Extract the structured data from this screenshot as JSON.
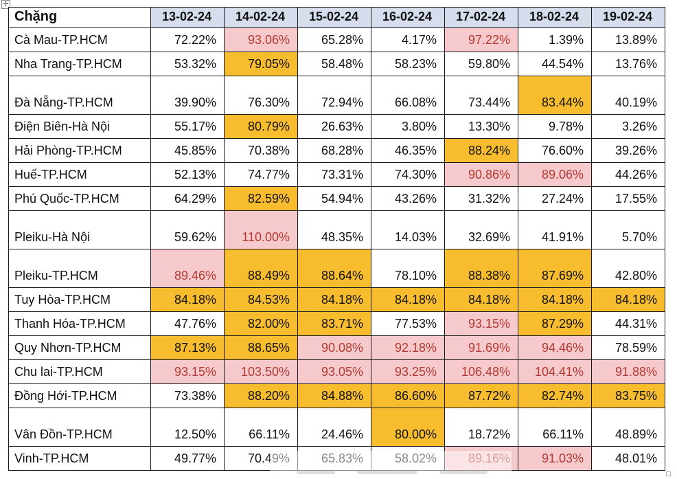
{
  "table": {
    "corner_label": "Chặng",
    "dates": [
      "13-02-24",
      "14-02-24",
      "15-02-24",
      "16-02-24",
      "17-02-24",
      "18-02-24",
      "19-02-24"
    ],
    "rows": [
      {
        "route": "Cà Mau-TP.HCM",
        "tall": false,
        "cells": [
          [
            "72.22%",
            "plain"
          ],
          [
            "93.06%",
            "pink"
          ],
          [
            "65.28%",
            "plain"
          ],
          [
            "4.17%",
            "plain"
          ],
          [
            "97.22%",
            "pink"
          ],
          [
            "1.39%",
            "plain"
          ],
          [
            "13.89%",
            "plain"
          ]
        ]
      },
      {
        "route": "Nha Trang-TP.HCM",
        "tall": false,
        "cells": [
          [
            "53.32%",
            "plain"
          ],
          [
            "79.05%",
            "gold"
          ],
          [
            "58.48%",
            "plain"
          ],
          [
            "58.23%",
            "plain"
          ],
          [
            "59.80%",
            "plain"
          ],
          [
            "44.54%",
            "plain"
          ],
          [
            "13.76%",
            "plain"
          ]
        ]
      },
      {
        "route": "Đà Nẵng-TP.HCM",
        "tall": true,
        "cells": [
          [
            "39.90%",
            "plain"
          ],
          [
            "76.30%",
            "plain"
          ],
          [
            "72.94%",
            "plain"
          ],
          [
            "66.08%",
            "plain"
          ],
          [
            "73.44%",
            "plain"
          ],
          [
            "83.44%",
            "gold"
          ],
          [
            "40.19%",
            "plain"
          ]
        ]
      },
      {
        "route": "Điện Biên-Hà Nội",
        "tall": false,
        "cells": [
          [
            "55.17%",
            "plain"
          ],
          [
            "80.79%",
            "gold"
          ],
          [
            "26.63%",
            "plain"
          ],
          [
            "3.80%",
            "plain"
          ],
          [
            "13.30%",
            "plain"
          ],
          [
            "9.78%",
            "plain"
          ],
          [
            "3.26%",
            "plain"
          ]
        ]
      },
      {
        "route": "Hải Phòng-TP.HCM",
        "tall": false,
        "cells": [
          [
            "45.85%",
            "plain"
          ],
          [
            "70.38%",
            "plain"
          ],
          [
            "68.28%",
            "plain"
          ],
          [
            "46.35%",
            "plain"
          ],
          [
            "88.24%",
            "gold"
          ],
          [
            "76.60%",
            "plain"
          ],
          [
            "39.26%",
            "plain"
          ]
        ]
      },
      {
        "route": "Huế-TP.HCM",
        "tall": false,
        "cells": [
          [
            "52.13%",
            "plain"
          ],
          [
            "74.77%",
            "plain"
          ],
          [
            "73.31%",
            "plain"
          ],
          [
            "74.30%",
            "plain"
          ],
          [
            "90.86%",
            "pink"
          ],
          [
            "89.06%",
            "pink"
          ],
          [
            "44.26%",
            "plain"
          ]
        ]
      },
      {
        "route": "Phú Quốc-TP.HCM",
        "tall": false,
        "cells": [
          [
            "64.29%",
            "plain"
          ],
          [
            "82.59%",
            "gold"
          ],
          [
            "54.94%",
            "plain"
          ],
          [
            "43.26%",
            "plain"
          ],
          [
            "31.32%",
            "plain"
          ],
          [
            "27.24%",
            "plain"
          ],
          [
            "17.55%",
            "plain"
          ]
        ]
      },
      {
        "route": "Pleiku-Hà Nội",
        "tall": true,
        "cells": [
          [
            "59.62%",
            "plain"
          ],
          [
            "110.00%",
            "pink"
          ],
          [
            "48.35%",
            "plain"
          ],
          [
            "14.03%",
            "plain"
          ],
          [
            "32.69%",
            "plain"
          ],
          [
            "41.91%",
            "plain"
          ],
          [
            "5.70%",
            "plain"
          ]
        ]
      },
      {
        "route": "Pleiku-TP.HCM",
        "tall": true,
        "cells": [
          [
            "89.46%",
            "pink"
          ],
          [
            "88.49%",
            "gold"
          ],
          [
            "88.64%",
            "gold"
          ],
          [
            "78.10%",
            "plain"
          ],
          [
            "88.38%",
            "gold"
          ],
          [
            "87.69%",
            "gold"
          ],
          [
            "42.80%",
            "plain"
          ]
        ]
      },
      {
        "route": "Tuy Hòa-TP.HCM",
        "tall": false,
        "cells": [
          [
            "84.18%",
            "gold"
          ],
          [
            "84.53%",
            "gold"
          ],
          [
            "84.18%",
            "gold"
          ],
          [
            "84.18%",
            "gold"
          ],
          [
            "84.18%",
            "gold"
          ],
          [
            "84.18%",
            "gold"
          ],
          [
            "84.18%",
            "gold"
          ]
        ]
      },
      {
        "route": "Thanh Hóa-TP.HCM",
        "tall": false,
        "cells": [
          [
            "47.76%",
            "plain"
          ],
          [
            "82.00%",
            "gold"
          ],
          [
            "83.71%",
            "gold"
          ],
          [
            "77.53%",
            "plain"
          ],
          [
            "93.15%",
            "pink"
          ],
          [
            "87.29%",
            "gold"
          ],
          [
            "44.31%",
            "plain"
          ]
        ]
      },
      {
        "route": "Quy Nhơn-TP.HCM",
        "tall": false,
        "cells": [
          [
            "87.13%",
            "gold"
          ],
          [
            "88.65%",
            "gold"
          ],
          [
            "90.08%",
            "pink"
          ],
          [
            "92.18%",
            "pink"
          ],
          [
            "91.69%",
            "pink"
          ],
          [
            "94.46%",
            "pink"
          ],
          [
            "78.59%",
            "plain"
          ]
        ]
      },
      {
        "route": "Chu lai-TP.HCM",
        "tall": false,
        "cells": [
          [
            "93.15%",
            "pink"
          ],
          [
            "103.50%",
            "pink"
          ],
          [
            "93.05%",
            "pink"
          ],
          [
            "93.25%",
            "pink"
          ],
          [
            "106.48%",
            "pink"
          ],
          [
            "104.41%",
            "pink"
          ],
          [
            "91.88%",
            "pink"
          ]
        ]
      },
      {
        "route": "Đồng Hới-TP.HCM",
        "tall": false,
        "cells": [
          [
            "73.38%",
            "plain"
          ],
          [
            "88.20%",
            "gold"
          ],
          [
            "84.88%",
            "gold"
          ],
          [
            "86.60%",
            "gold"
          ],
          [
            "87.72%",
            "gold"
          ],
          [
            "82.74%",
            "gold"
          ],
          [
            "83.75%",
            "gold"
          ]
        ]
      },
      {
        "route": "Vân Đồn-TP.HCM",
        "tall": true,
        "cells": [
          [
            "12.50%",
            "plain"
          ],
          [
            "66.11%",
            "plain"
          ],
          [
            "24.46%",
            "plain"
          ],
          [
            "80.00%",
            "gold"
          ],
          [
            "18.72%",
            "plain"
          ],
          [
            "66.11%",
            "plain"
          ],
          [
            "48.89%",
            "plain"
          ]
        ]
      },
      {
        "route": "Vinh-TP.HCM",
        "tall": false,
        "cells": [
          [
            "49.77%",
            "plain"
          ],
          [
            "70.49%",
            "plain"
          ],
          [
            "65.83%",
            "plain"
          ],
          [
            "58.02%",
            "plain"
          ],
          [
            "89.16%",
            "pink"
          ],
          [
            "91.03%",
            "pink"
          ],
          [
            "48.01%",
            "plain"
          ]
        ]
      }
    ]
  },
  "colors": {
    "header_fill": "#D6DDEC",
    "gold_fill": "#F7BD2E",
    "pink_fill": "#F6C9CD",
    "pink_text": "#B23A31",
    "grid_line": "#1A1A1A",
    "body_text": "#111111"
  },
  "artifacts": {
    "move_handle_glyph": "✛"
  }
}
